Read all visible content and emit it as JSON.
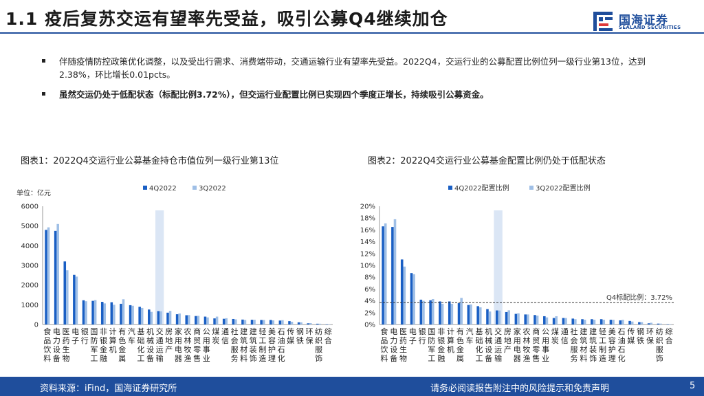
{
  "header": {
    "title": "1.1 疫后复苏交运有望率先受益，吸引公募Q4继续加仓",
    "logo_cn": "国海证券",
    "logo_en": "SEALAND SECURITIES"
  },
  "bullets": [
    "伴随疫情防控政策优化调整，以及受出行需求、消费端带动，交通运输行业有望率先受益。2022Q4，交运行业的公募配置比例位列一级行业第13位，达到2.38%，环比增长0.01pcts。",
    "虽然交运仍处于低配状态（标配比例3.72%），但交运行业配置比例已实现四个季度正增长，持续吸引公募资金。"
  ],
  "footer": {
    "source": "资料来源：iFind，国海证券研究所",
    "disclaimer": "请务必阅读报告附注中的风险提示和免责声明",
    "page": "5"
  },
  "colors": {
    "primary": "#1f4e9c",
    "series1": "#1a5fc4",
    "series2": "#9fbfe6",
    "highlight": "#dbe6f5"
  },
  "chart_data": [
    {
      "type": "bar",
      "title": "图表1：2022Q4交运行业公募基金持仓市值位列一级行业第13位",
      "unit_label": "单位：亿元",
      "ylim": [
        0,
        6000
      ],
      "yticks": [
        "0",
        "1000",
        "2000",
        "3000",
        "4000",
        "5000",
        "6000"
      ],
      "highlight_category": "交通运输",
      "categories": [
        "食品饮料",
        "电力设备",
        "医药生物",
        "电子",
        "银行",
        "国防军工",
        "非银金融",
        "计算机",
        "有色金属",
        "汽车",
        "基础化工",
        "机械设备",
        "交通运输",
        "房地产",
        "家用电器",
        "农林牧渔",
        "商贸零售",
        "公用事业",
        "煤炭",
        "通信",
        "社会服务",
        "建筑材料",
        "建筑装饰",
        "轻工制造",
        "美容护理",
        "石油石化",
        "传媒",
        "钢铁",
        "环保",
        "纺织服饰",
        "综合"
      ],
      "category_labels": [
        [
          "食",
          "品",
          "饮",
          "料"
        ],
        [
          "电",
          "力",
          "设",
          "备"
        ],
        [
          "医",
          "药",
          "生",
          "物"
        ],
        [
          "电",
          "子"
        ],
        [
          "银",
          "行"
        ],
        [
          "国",
          "防",
          "军",
          "工"
        ],
        [
          "非",
          "银",
          "金",
          "融"
        ],
        [
          "计",
          "算",
          "机"
        ],
        [
          "有",
          "色",
          "金",
          "属"
        ],
        [
          "汽",
          "车"
        ],
        [
          "基",
          "础",
          "化",
          "工"
        ],
        [
          "机",
          "械",
          "设",
          "备"
        ],
        [
          "交",
          "通",
          "运",
          "输"
        ],
        [
          "房",
          "地",
          "产"
        ],
        [
          "家",
          "用",
          "电",
          "器"
        ],
        [
          "农",
          "林",
          "牧",
          "渔"
        ],
        [
          "商",
          "贸",
          "零",
          "售"
        ],
        [
          "公",
          "用",
          "事",
          "业"
        ],
        [
          "煤",
          "炭"
        ],
        [
          "通",
          "信"
        ],
        [
          "社",
          "会",
          "服",
          "务"
        ],
        [
          "建",
          "筑",
          "材",
          "料"
        ],
        [
          "建",
          "筑",
          "装",
          "饰"
        ],
        [
          "轻",
          "工",
          "制",
          "造"
        ],
        [
          "美",
          "容",
          "护",
          "理"
        ],
        [
          "石",
          "油",
          "石",
          "化"
        ],
        [
          "传",
          "媒"
        ],
        [
          "钢",
          "铁"
        ],
        [
          "环",
          "保"
        ],
        [
          "纺",
          "织",
          "服",
          "饰"
        ],
        [
          "综",
          "合"
        ]
      ],
      "series": [
        {
          "name": "4Q2022",
          "values": [
            4800,
            4750,
            3200,
            2520,
            1230,
            1200,
            1150,
            1130,
            1050,
            980,
            900,
            760,
            680,
            600,
            520,
            470,
            430,
            400,
            310,
            290,
            280,
            250,
            240,
            230,
            230,
            200,
            170,
            110,
            60,
            40,
            10
          ]
        },
        {
          "name": "3Q2022",
          "values": [
            4930,
            5100,
            2750,
            2430,
            1180,
            1240,
            1070,
            1000,
            1280,
            950,
            840,
            640,
            670,
            690,
            560,
            480,
            440,
            360,
            400,
            320,
            260,
            230,
            240,
            230,
            210,
            220,
            140,
            110,
            70,
            40,
            10
          ]
        }
      ]
    },
    {
      "type": "bar",
      "title": "图表2：2022Q4交运行业公募基金配置比例仍处于低配状态",
      "ylim": [
        0,
        20
      ],
      "yticks": [
        "0%",
        "2%",
        "4%",
        "6%",
        "8%",
        "10%",
        "12%",
        "14%",
        "16%",
        "18%",
        "20%"
      ],
      "highlight_category": "交通运输",
      "reference_line": {
        "value": 3.72,
        "label": "Q4标配比例：3.72%"
      },
      "categories": [
        "食品饮料",
        "电力设备",
        "医药生物",
        "电子",
        "银行",
        "国防军工",
        "非银金融",
        "计算机",
        "有色金属",
        "汽车",
        "基础化工",
        "机械设备",
        "交通运输",
        "房地产",
        "家用电器",
        "农林牧渔",
        "商贸零售",
        "公用事业",
        "煤炭",
        "通信",
        "社会服务",
        "建筑材料",
        "建筑装饰",
        "轻工制造",
        "美容护理",
        "石油石化",
        "传媒",
        "钢铁",
        "环保",
        "纺织服饰",
        "综合"
      ],
      "category_labels": [
        [
          "食",
          "品",
          "饮",
          "料"
        ],
        [
          "电",
          "力",
          "设",
          "备"
        ],
        [
          "医",
          "药",
          "生",
          "物"
        ],
        [
          "电",
          "子"
        ],
        [
          "银",
          "行"
        ],
        [
          "国",
          "防",
          "军",
          "工"
        ],
        [
          "非",
          "银",
          "金",
          "融"
        ],
        [
          "计",
          "算",
          "机"
        ],
        [
          "有",
          "色",
          "金",
          "属"
        ],
        [
          "汽",
          "车"
        ],
        [
          "基",
          "础",
          "化",
          "工"
        ],
        [
          "机",
          "械",
          "设",
          "备"
        ],
        [
          "交",
          "通",
          "运",
          "输"
        ],
        [
          "房",
          "地",
          "产"
        ],
        [
          "家",
          "用",
          "电",
          "器"
        ],
        [
          "农",
          "林",
          "牧",
          "渔"
        ],
        [
          "商",
          "贸",
          "零",
          "售"
        ],
        [
          "公",
          "用",
          "事",
          "业"
        ],
        [
          "煤",
          "炭"
        ],
        [
          "通",
          "信"
        ],
        [
          "社",
          "会",
          "服",
          "务"
        ],
        [
          "建",
          "筑",
          "材",
          "料"
        ],
        [
          "建",
          "筑",
          "装",
          "饰"
        ],
        [
          "轻",
          "工",
          "制",
          "造"
        ],
        [
          "美",
          "容",
          "护",
          "理"
        ],
        [
          "石",
          "油",
          "石",
          "化"
        ],
        [
          "传",
          "媒"
        ],
        [
          "钢",
          "铁"
        ],
        [
          "环",
          "保"
        ],
        [
          "纺",
          "织",
          "服",
          "饰"
        ],
        [
          "综",
          "合"
        ]
      ],
      "series": [
        {
          "name": "4Q2022配置比例",
          "values": [
            16.6,
            16.5,
            11.0,
            8.7,
            4.2,
            4.1,
            3.9,
            3.9,
            3.6,
            3.3,
            3.1,
            2.6,
            2.38,
            2.1,
            1.8,
            1.7,
            1.6,
            1.4,
            1.1,
            1.1,
            1.0,
            0.9,
            0.9,
            0.9,
            0.8,
            0.7,
            0.6,
            0.4,
            0.2,
            0.15,
            0.05
          ]
        },
        {
          "name": "3Q2022配置比例",
          "values": [
            17.1,
            17.8,
            9.8,
            8.5,
            4.0,
            4.3,
            3.5,
            3.5,
            4.5,
            3.4,
            2.9,
            2.2,
            2.37,
            2.4,
            1.9,
            1.7,
            1.5,
            1.2,
            1.4,
            1.1,
            0.9,
            0.8,
            0.8,
            0.8,
            0.8,
            0.8,
            0.5,
            0.4,
            0.3,
            0.15,
            0.05
          ]
        }
      ]
    }
  ]
}
